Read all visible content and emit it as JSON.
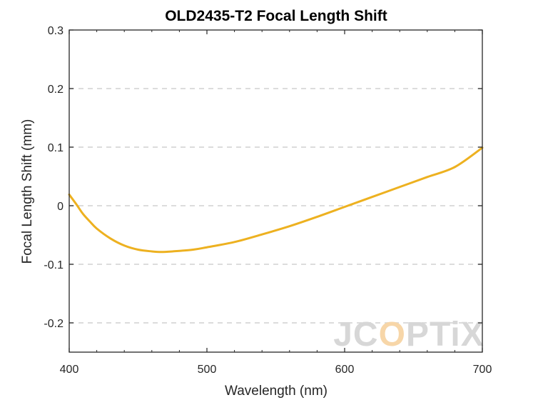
{
  "chart_data": {
    "type": "line",
    "title": "OLD2435-T2 Focal Length Shift",
    "xlabel": "Wavelength (nm)",
    "ylabel": "Focal Length Shift (mm)",
    "xlim": [
      400,
      700
    ],
    "ylim": [
      -0.25,
      0.3
    ],
    "x_ticks": [
      400,
      500,
      600,
      700
    ],
    "x_tick_labels": [
      "400",
      "500",
      "600",
      "700"
    ],
    "y_ticks": [
      -0.2,
      -0.1,
      0,
      0.1,
      0.2,
      0.3
    ],
    "y_tick_labels": [
      "-0.2",
      "-0.1",
      "0",
      "0.1",
      "0.2",
      "0.3"
    ],
    "grid": "horizontal dashed",
    "series": [
      {
        "color": "#EDB120",
        "x": [
          400,
          405,
          410,
          415,
          420,
          430,
          440,
          450,
          460,
          467,
          475,
          490,
          500,
          520,
          540,
          560,
          580,
          600,
          620,
          640,
          660,
          680,
          700
        ],
        "y": [
          0.019,
          0.003,
          -0.014,
          -0.027,
          -0.039,
          -0.056,
          -0.068,
          -0.075,
          -0.078,
          -0.079,
          -0.078,
          -0.075,
          -0.071,
          -0.062,
          -0.049,
          -0.035,
          -0.019,
          -0.002,
          0.015,
          0.032,
          0.049,
          0.066,
          0.099
        ]
      }
    ]
  },
  "watermark": {
    "text_part1": "JC",
    "text_accent": "O",
    "text_part2": "PTiX"
  }
}
